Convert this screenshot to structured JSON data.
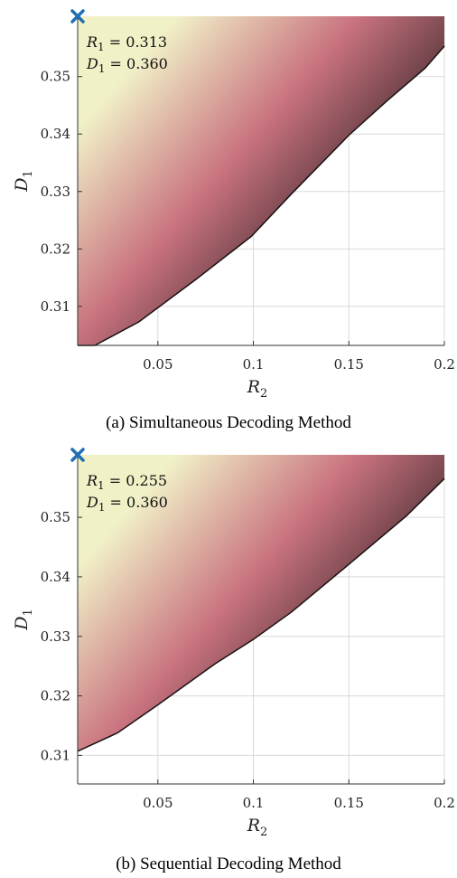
{
  "chart_data": [
    {
      "type": "area",
      "caption": "(a) Simultaneous Decoding Method",
      "xlabel": "R",
      "xlabel_sub": "2",
      "ylabel": "D",
      "ylabel_sub": "1",
      "xlim": [
        0.008,
        0.2
      ],
      "ylim": [
        0.3032,
        0.3605
      ],
      "xticks": [
        0.05,
        0.1,
        0.15,
        0.2
      ],
      "xtick_labels": [
        "0.05",
        "0.1",
        "0.15",
        "0.2"
      ],
      "yticks": [
        0.31,
        0.32,
        0.33,
        0.34,
        0.35
      ],
      "ytick_labels": [
        "0.31",
        "0.32",
        "0.33",
        "0.34",
        "0.35"
      ],
      "grid": true,
      "boundary": {
        "x": [
          0.008,
          0.017,
          0.04,
          0.07,
          0.099,
          0.12,
          0.15,
          0.17,
          0.19,
          0.2
        ],
        "y": [
          0.3032,
          0.3032,
          0.3073,
          0.3147,
          0.3222,
          0.3296,
          0.3398,
          0.3458,
          0.3515,
          0.3553
        ]
      },
      "marker": {
        "x": 0.008,
        "y": 0.3605,
        "symbol": "x",
        "color": "#1f6fb5"
      },
      "annotations": [
        {
          "var": "R",
          "sub": "1",
          "text": " = 0.313"
        },
        {
          "var": "D",
          "sub": "1",
          "text": " = 0.360"
        }
      ]
    },
    {
      "type": "area",
      "caption": "(b) Sequential Decoding Method",
      "xlabel": "R",
      "xlabel_sub": "2",
      "ylabel": "D",
      "ylabel_sub": "1",
      "xlim": [
        0.008,
        0.2
      ],
      "ylim": [
        0.3052,
        0.3605
      ],
      "xticks": [
        0.05,
        0.1,
        0.15,
        0.2
      ],
      "xtick_labels": [
        "0.05",
        "0.1",
        "0.15",
        "0.2"
      ],
      "yticks": [
        0.31,
        0.32,
        0.33,
        0.34,
        0.35
      ],
      "ytick_labels": [
        "0.31",
        "0.32",
        "0.33",
        "0.34",
        "0.35"
      ],
      "grid": true,
      "boundary": {
        "x": [
          0.008,
          0.029,
          0.05,
          0.08,
          0.1,
          0.12,
          0.15,
          0.18,
          0.2
        ],
        "y": [
          0.3107,
          0.3138,
          0.3185,
          0.3254,
          0.3295,
          0.3341,
          0.3421,
          0.3502,
          0.3565
        ]
      },
      "marker": {
        "x": 0.008,
        "y": 0.3605,
        "symbol": "x",
        "color": "#1f6fb5"
      },
      "annotations": [
        {
          "var": "R",
          "sub": "1",
          "text": " = 0.255"
        },
        {
          "var": "D",
          "sub": "1",
          "text": " = 0.360"
        }
      ]
    }
  ],
  "colors": {
    "light": "#f1f1c8",
    "mid": "#c9737f",
    "dark": "#2a1d1f",
    "marker": "#1f6fb5"
  }
}
